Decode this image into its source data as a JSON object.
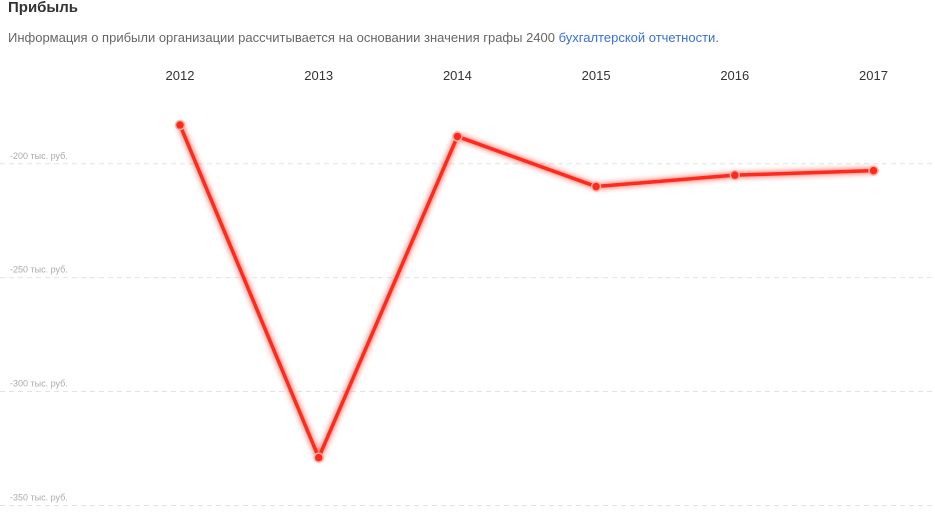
{
  "chart_data": {
    "type": "line",
    "title": "Прибыль",
    "subtitle": "Информация о прибыли организации рассчитывается на основании значения графы 2400",
    "subtitle_link": "бухгалтерской отчетности",
    "subtitle_end": ".",
    "categories": [
      "2012",
      "2013",
      "2014",
      "2015",
      "2016",
      "2017"
    ],
    "values": [
      -183,
      -329,
      -188,
      -210,
      -205,
      -203
    ],
    "color": "#ff2a1a",
    "ylim": [
      -352,
      -172
    ],
    "yticks": [
      {
        "value": -200,
        "label": "-200 тыс. руб."
      },
      {
        "value": -250,
        "label": "-250 тыс. руб."
      },
      {
        "value": -300,
        "label": "-300 тыс. руб."
      },
      {
        "value": -350,
        "label": "-350 тыс. руб."
      }
    ],
    "grid": true
  }
}
